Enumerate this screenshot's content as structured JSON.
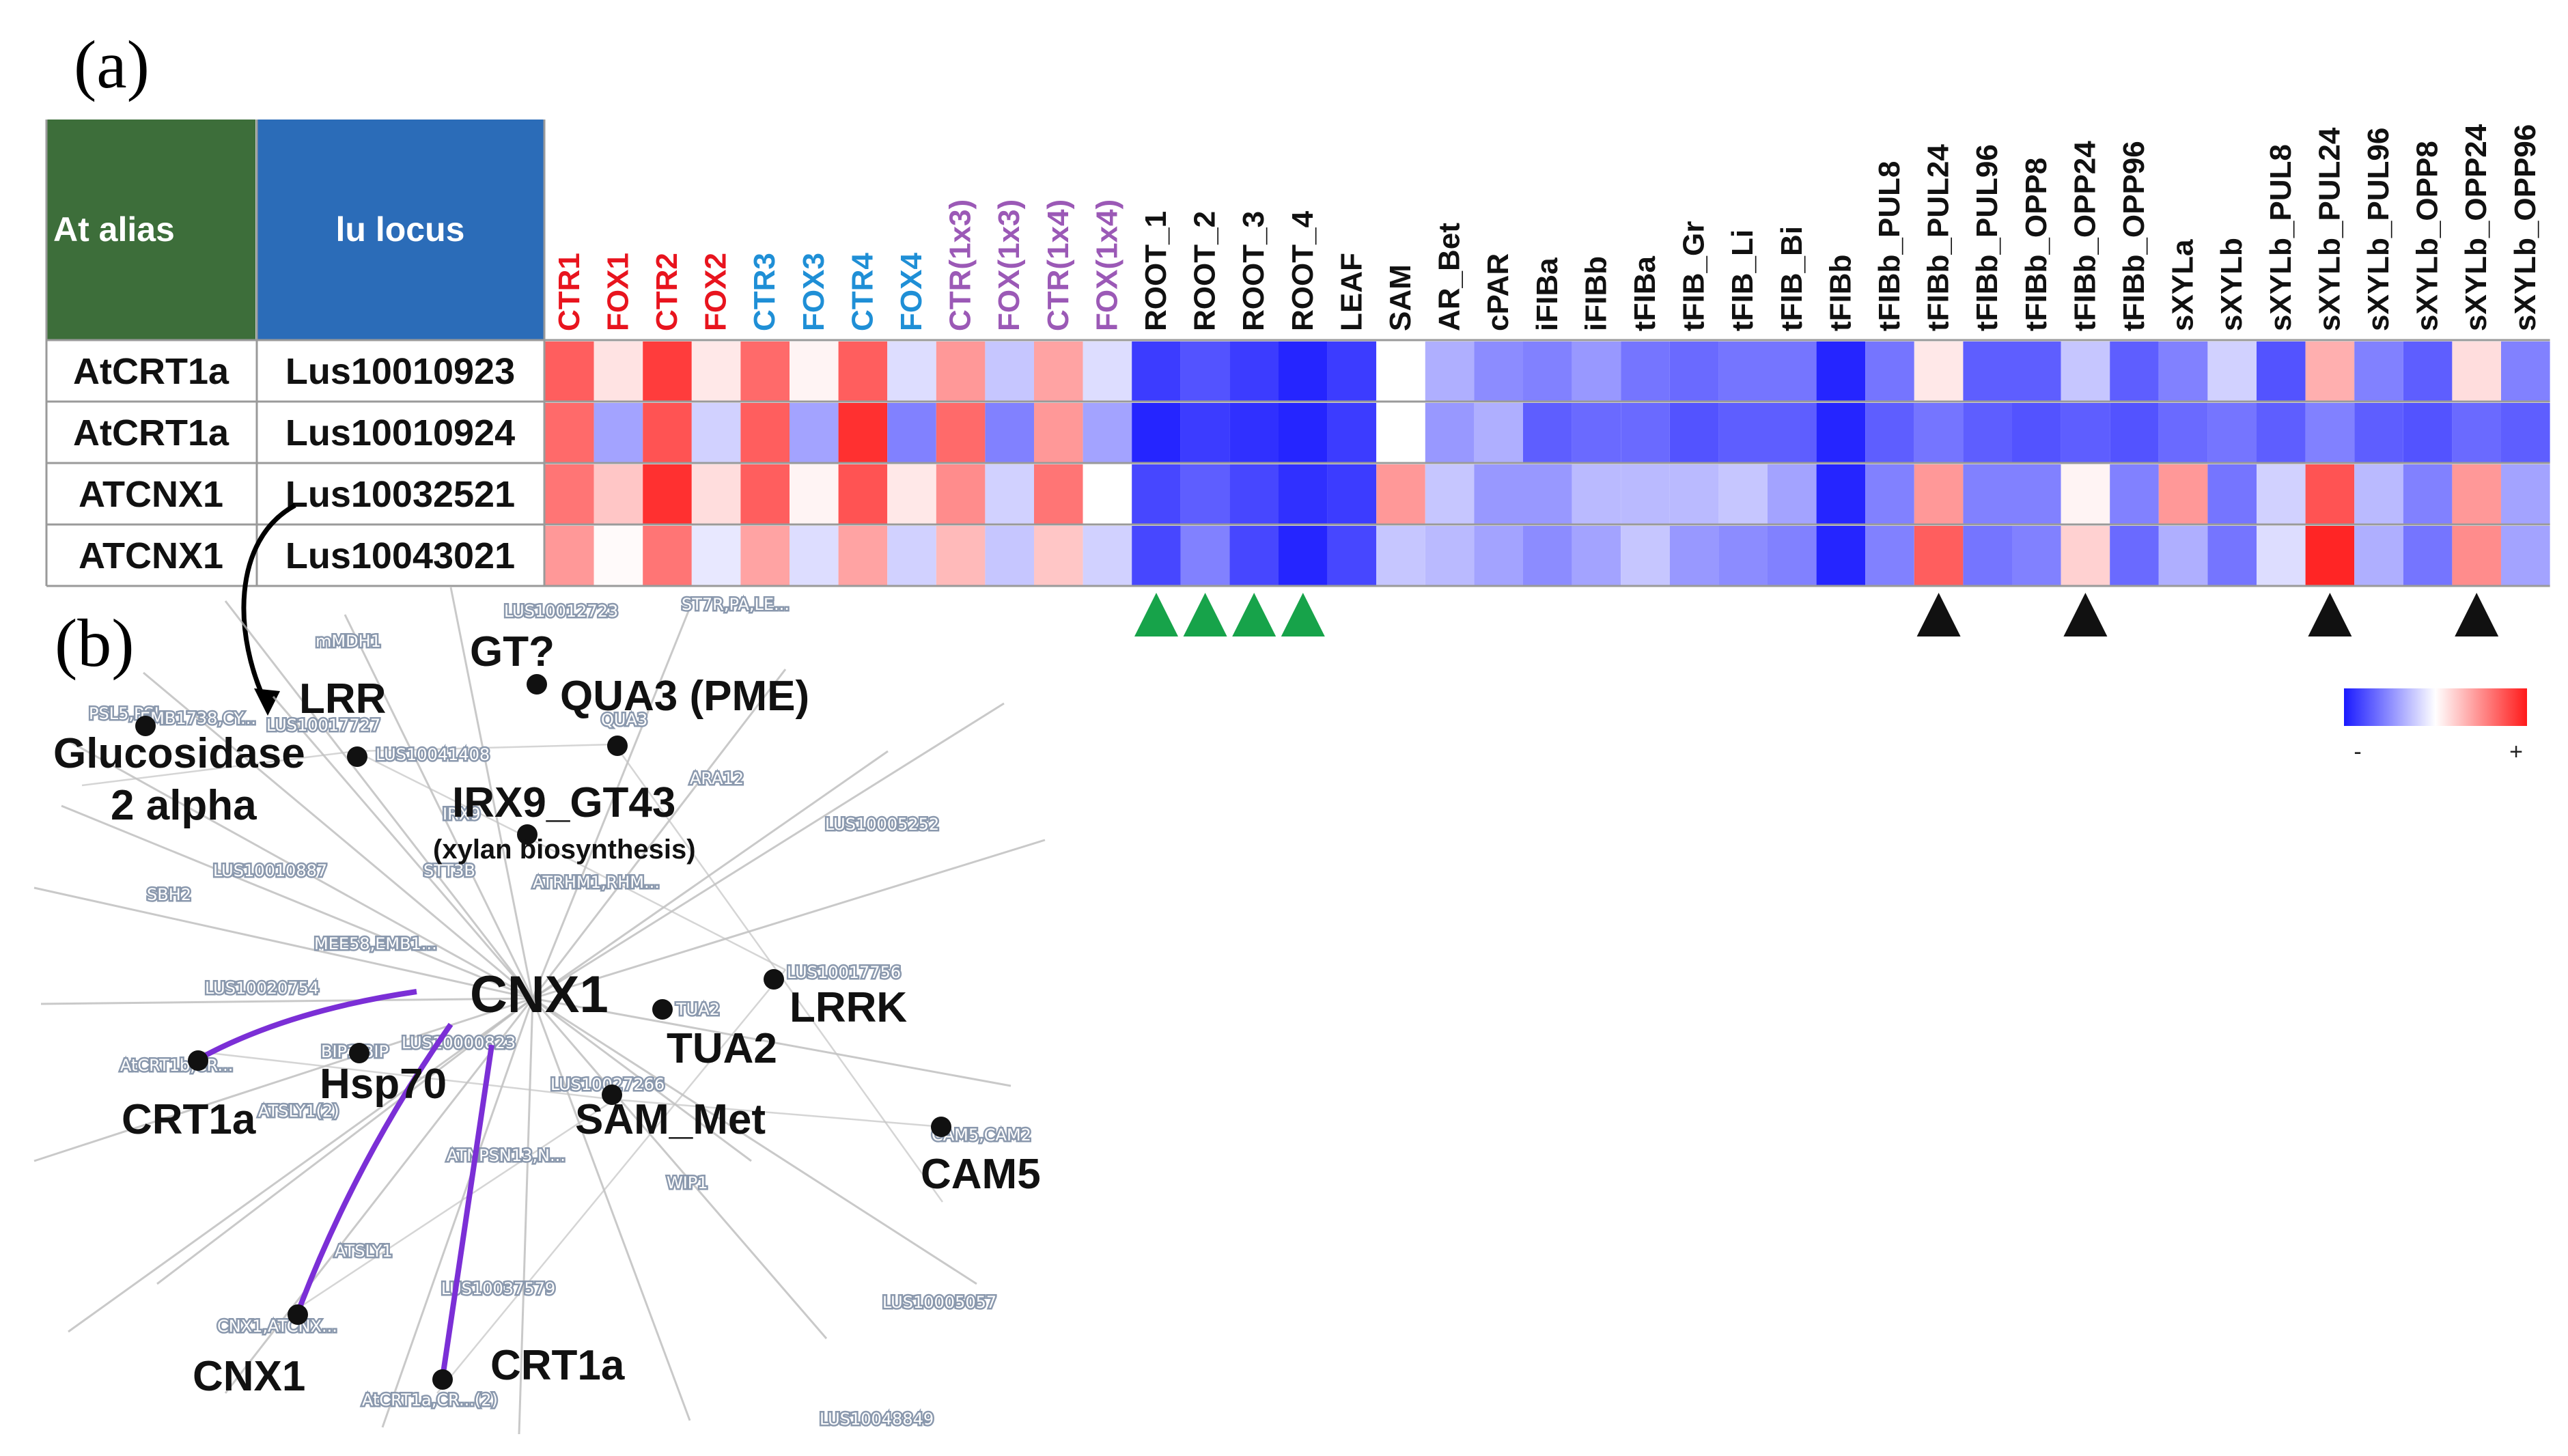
{
  "panels": {
    "a": "(a)",
    "b": "(b)"
  },
  "heatmap": {
    "header": {
      "alias": "At alias",
      "locus": "lu locus"
    },
    "colors": {
      "alias_bg": "#3d6e3a",
      "locus_bg": "#2b6cb8",
      "red": "#e8141e",
      "blue": "#1f8fd6",
      "purple": "#9b59b6",
      "black": "#111111",
      "low": "#1a1aff",
      "high": "#ff1a1a"
    },
    "columns": [
      "CTR1",
      "FOX1",
      "CTR2",
      "FOX2",
      "CTR3",
      "FOX3",
      "CTR4",
      "FOX4",
      "CTR(1x3)",
      "FOX(1x3)",
      "CTR(1x4)",
      "FOX(1x4)",
      "ROOT_1",
      "ROOT_2",
      "ROOT_3",
      "ROOT_4",
      "LEAF",
      "SAM",
      "AR_Bet",
      "cPAR",
      "iFIBa",
      "iFIBb",
      "tFIBa",
      "tFIB_Gr",
      "tFIB_Li",
      "tFIB_Bi",
      "tFIBb",
      "tFIBb_PUL8",
      "tFIBb_PUL24",
      "tFIBb_PUL96",
      "tFIBb_OPP8",
      "tFIBb_OPP24",
      "tFIBb_OPP96",
      "sXYLa",
      "sXYLb",
      "sXYLb_PUL8",
      "sXYLb_PUL24",
      "sXYLb_PUL96",
      "sXYLb_OPP8",
      "sXYLb_OPP24",
      "sXYLb_OPP96"
    ],
    "column_groups": [
      "red",
      "red",
      "red",
      "red",
      "blue",
      "blue",
      "blue",
      "blue",
      "purple",
      "purple",
      "purple",
      "purple",
      "black",
      "black",
      "black",
      "black",
      "black",
      "black",
      "black",
      "black",
      "black",
      "black",
      "black",
      "black",
      "black",
      "black",
      "black",
      "black",
      "black",
      "black",
      "black",
      "black",
      "black",
      "black",
      "black",
      "black",
      "black",
      "black",
      "black",
      "black",
      "black"
    ],
    "rows": [
      {
        "alias": "AtCRT1a",
        "locus": "Lus10010923",
        "highlight": false,
        "values": [
          0.7,
          0.12,
          0.85,
          0.1,
          0.65,
          0.05,
          0.7,
          -0.15,
          0.45,
          -0.25,
          0.4,
          -0.15,
          -0.85,
          -0.75,
          -0.85,
          -0.95,
          -0.85,
          0.0,
          -0.35,
          -0.5,
          -0.55,
          -0.45,
          -0.6,
          -0.65,
          -0.6,
          -0.6,
          -0.95,
          -0.6,
          0.1,
          -0.7,
          -0.7,
          -0.25,
          -0.7,
          -0.55,
          -0.2,
          -0.75,
          0.35,
          -0.55,
          -0.7,
          0.15,
          -0.55
        ]
      },
      {
        "alias": "AtCRT1a",
        "locus": "Lus10010924",
        "highlight": false,
        "values": [
          0.65,
          -0.4,
          0.75,
          -0.2,
          0.7,
          -0.4,
          0.9,
          -0.55,
          0.65,
          -0.55,
          0.45,
          -0.4,
          -0.95,
          -0.85,
          -0.9,
          -0.95,
          -0.85,
          0.0,
          -0.45,
          -0.35,
          -0.7,
          -0.65,
          -0.65,
          -0.75,
          -0.7,
          -0.7,
          -0.95,
          -0.7,
          -0.6,
          -0.7,
          -0.75,
          -0.7,
          -0.75,
          -0.65,
          -0.6,
          -0.7,
          -0.55,
          -0.7,
          -0.75,
          -0.65,
          -0.7
        ]
      },
      {
        "alias": "ATCNX1",
        "locus": "Lus10032521",
        "highlight": true,
        "values": [
          0.6,
          0.25,
          0.9,
          0.15,
          0.7,
          0.05,
          0.75,
          0.1,
          0.5,
          -0.2,
          0.6,
          0.0,
          -0.8,
          -0.7,
          -0.8,
          -0.9,
          -0.85,
          0.45,
          -0.25,
          -0.45,
          -0.45,
          -0.3,
          -0.3,
          -0.3,
          -0.25,
          -0.4,
          -0.95,
          -0.55,
          0.45,
          -0.55,
          -0.55,
          0.05,
          -0.55,
          0.45,
          -0.6,
          -0.2,
          0.75,
          -0.3,
          -0.55,
          0.45,
          -0.4
        ]
      },
      {
        "alias": "ATCNX1",
        "locus": "Lus10043021",
        "highlight": false,
        "values": [
          0.45,
          0.02,
          0.6,
          -0.1,
          0.4,
          -0.15,
          0.4,
          -0.2,
          0.3,
          -0.25,
          0.25,
          -0.2,
          -0.8,
          -0.55,
          -0.8,
          -0.95,
          -0.8,
          -0.25,
          -0.3,
          -0.4,
          -0.5,
          -0.4,
          -0.25,
          -0.45,
          -0.5,
          -0.55,
          -0.95,
          -0.55,
          0.7,
          -0.6,
          -0.55,
          0.2,
          -0.65,
          -0.35,
          -0.6,
          -0.15,
          0.95,
          -0.35,
          -0.6,
          0.5,
          -0.4
        ]
      }
    ],
    "green_markers": [
      "ROOT_1",
      "ROOT_2",
      "ROOT_3",
      "ROOT_4"
    ],
    "black_markers": [
      "tFIBb_PUL24",
      "tFIBb_OPP24",
      "sXYLb_PUL24",
      "sXYLb_OPP24"
    ],
    "legend": {
      "minus": "-",
      "plus": "+"
    }
  },
  "network": {
    "center": {
      "name": "CNX1",
      "color": "#e8141e"
    },
    "node_color": "#111111",
    "edge_color": "#7b2fd6",
    "labels": {
      "gt": "GT?",
      "qua3": "QUA3 (PME)",
      "lrr": "LRR",
      "glucosidase_1": "Glucosidase",
      "glucosidase_2": "2 alpha",
      "irx9": "IRX9_GT43",
      "irx9_sub": "(xylan biosynthesis)",
      "lrrk": "LRRK",
      "tua2": "TUA2",
      "hsp70": "Hsp70",
      "crt1a_left": "CRT1a",
      "sam_met": "SAM_Met",
      "cam5": "CAM5",
      "cnx1_bottom": "CNX1",
      "crt1a_bottom": "CRT1a"
    },
    "background_labels": [
      "LUS10012723",
      "ST7R,PA,LE...",
      "mMDH1",
      "QUA3",
      "PSL5,PSL",
      "EMB1738,CY...",
      "LUS10017727",
      "LUS10041408",
      "ARA12",
      "LUS10005252",
      "IRX9",
      "LUS10010887",
      "STT3B",
      "ATRHM1,RHM...",
      "SBH2",
      "MEE58,EMB1...",
      "LUS10020754",
      "LUS10017756",
      "TUA2",
      "BIP1,BIP",
      "LUS10000823",
      "AtCRT1b,CR...",
      "LUS10027266",
      "ATSLY1(2)",
      "CAM5,CAM2",
      "ATNPSN13,N...",
      "WIP1",
      "ATSLY1",
      "LUS10037579",
      "LUS10005057",
      "CNX1,ATCNX...",
      "AtCRT1a,CR...(2)",
      "LUS10048849"
    ]
  }
}
